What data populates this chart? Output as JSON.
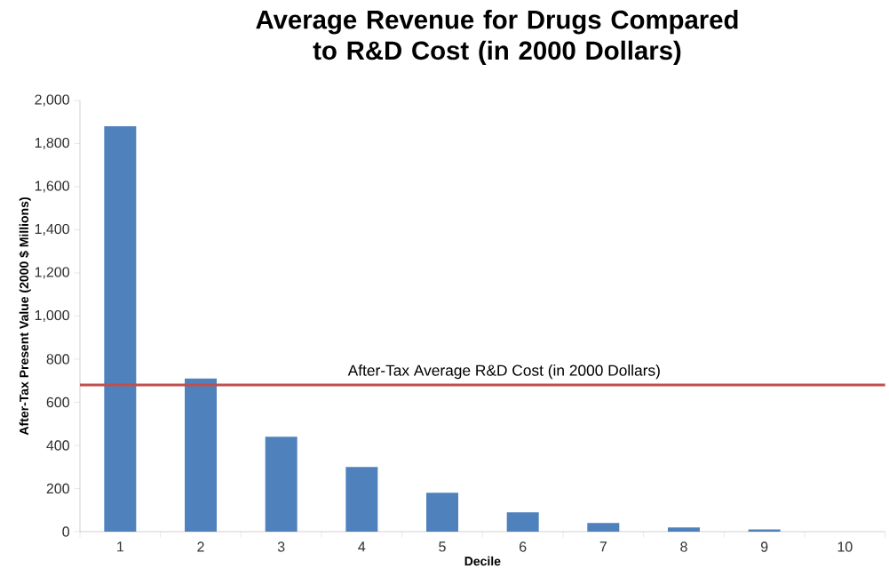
{
  "chart_data": {
    "type": "bar",
    "title": "Average Revenue for Drugs Compared to R&D Cost (in 2000 Dollars)",
    "xlabel": "Decile",
    "ylabel": "After-Tax Present Value (2000 $ Millions)",
    "categories": [
      "1",
      "2",
      "3",
      "4",
      "5",
      "6",
      "7",
      "8",
      "9",
      "10"
    ],
    "values": [
      1880,
      710,
      440,
      300,
      180,
      90,
      40,
      20,
      10,
      0
    ],
    "color": "#4f81bd",
    "ylim": [
      0,
      2000
    ],
    "yticks": [
      {
        "value": 0,
        "label": "0"
      },
      {
        "value": 200,
        "label": "200"
      },
      {
        "value": 400,
        "label": "400"
      },
      {
        "value": 600,
        "label": "600"
      },
      {
        "value": 800,
        "label": "800"
      },
      {
        "value": 1000,
        "label": "1,000"
      },
      {
        "value": 1200,
        "label": "1,200"
      },
      {
        "value": 1400,
        "label": "1,400"
      },
      {
        "value": 1600,
        "label": "1,600"
      },
      {
        "value": 1800,
        "label": "1,800"
      },
      {
        "value": 2000,
        "label": "2,000"
      }
    ],
    "ref_lines": [
      {
        "axis": "y",
        "value": 680,
        "label": "After-Tax Average R&D Cost (in 2000 Dollars)",
        "color": "#c0504d"
      }
    ],
    "grid": false
  }
}
